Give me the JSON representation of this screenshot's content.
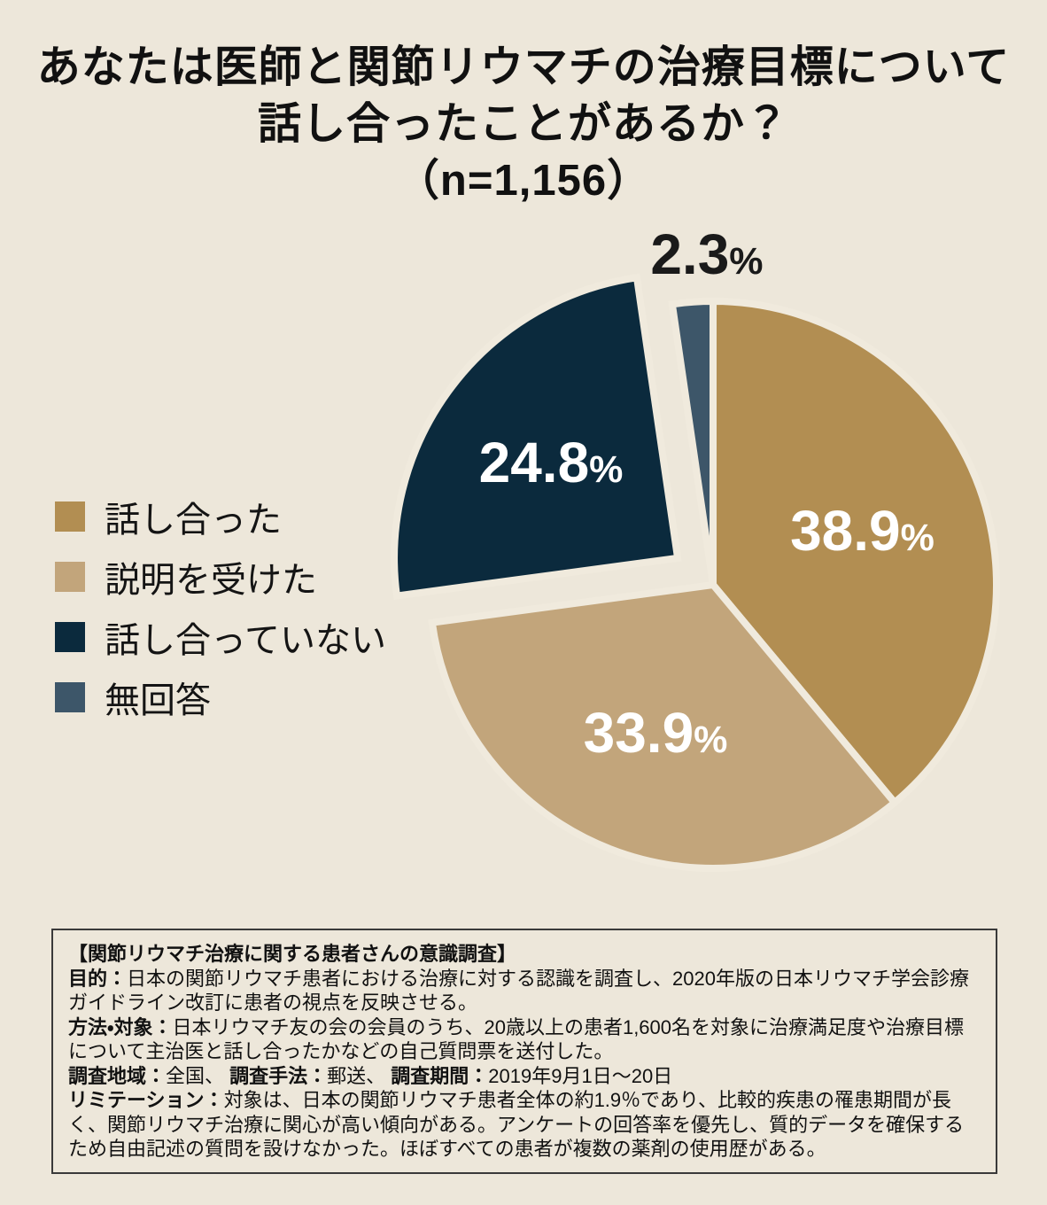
{
  "page": {
    "background": "#EDE7DA"
  },
  "title": {
    "lines": [
      "あなたは医師と関節リウマチの治療目標について",
      "話し合ったことがあるか？",
      "（n=1,156）"
    ]
  },
  "chart_data": {
    "type": "pie",
    "title": "あなたは医師と関節リウマチの治療目標について話し合ったことがあるか？",
    "sample_size_label": "（n=1,156）",
    "unit": "%",
    "direction": "clockwise",
    "start_angle_deg": 0,
    "legend_position": "left",
    "slices": [
      {
        "label": "話し合った",
        "value": 38.9,
        "pct_text": "38.9",
        "color": "#B28E52",
        "label_color": "#FFFFFF",
        "label_position": "inside",
        "exploded": false
      },
      {
        "label": "説明を受けた",
        "value": 33.9,
        "pct_text": "33.9",
        "color": "#C2A57B",
        "label_color": "#FFFFFF",
        "label_position": "inside",
        "exploded": false
      },
      {
        "label": "話し合っていない",
        "value": 24.8,
        "pct_text": "24.8",
        "color": "#0B2A3D",
        "label_color": "#FFFFFF",
        "label_position": "inside",
        "exploded": true
      },
      {
        "label": "無回答",
        "value": 2.3,
        "pct_text": "2.3",
        "color": "#3D5669",
        "label_color": "#1A1A1A",
        "label_position": "outside",
        "exploded": false
      }
    ]
  },
  "footer": {
    "paragraphs": [
      [
        {
          "text": "【関節リウマチ治療に関する患者さんの意識調査】",
          "bold": true
        }
      ],
      [
        {
          "text": "目的：",
          "bold": true
        },
        {
          "text": "日本の関節リウマチ患者における治療に対する認識を調査し、2020年版の日本リウマチ学会診療ガイドライン改訂に患者の視点を反映させる。",
          "bold": false
        }
      ],
      [
        {
          "text": "方法・対象：",
          "bold": true
        },
        {
          "text": "日本リウマチ友の会の会員のうち、20歳以上の患者1,600名を対象に治療満足度や治療目標について主治医と話し合ったかなどの自己質問票を送付した。",
          "bold": false
        }
      ],
      [
        {
          "text": "調査地域：",
          "bold": true
        },
        {
          "text": "全国、 ",
          "bold": false
        },
        {
          "text": "調査手法：",
          "bold": true
        },
        {
          "text": "郵送、 ",
          "bold": false
        },
        {
          "text": "調査期間：",
          "bold": true
        },
        {
          "text": "2019年9月1日～20日",
          "bold": false
        }
      ],
      [
        {
          "text": "リミテーション：",
          "bold": true
        },
        {
          "text": "対象は、日本の関節リウマチ患者全体の約1.9％であり、比較的疾患の罹患期間が長く、関節リウマチ治療に関心が高い傾向がある。アンケートの回答率を優先し、質的データを確保するため自由記述の質問を設けなかった。ほぼすべての患者が複数の薬剤の使用歴がある。",
          "bold": false
        }
      ]
    ]
  }
}
